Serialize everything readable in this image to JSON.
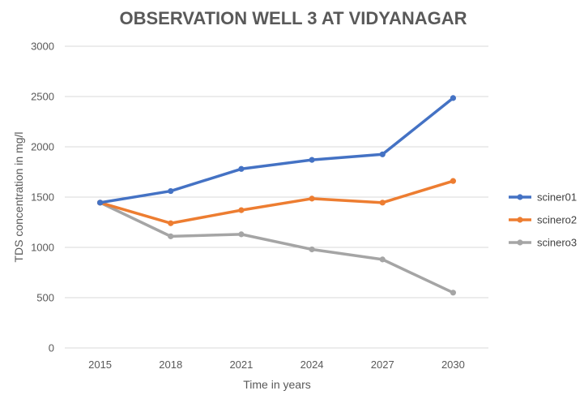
{
  "chart_data": {
    "type": "line",
    "title": "OBSERVATION WELL 3 AT VIDYANAGAR",
    "xlabel": "Time in years",
    "ylabel": "TDS concentration in mg/l",
    "categories": [
      "2015",
      "2018",
      "2021",
      "2024",
      "2027",
      "2030"
    ],
    "ylim": [
      0,
      3000
    ],
    "yticks": [
      0,
      500,
      1000,
      1500,
      2000,
      2500,
      3000
    ],
    "grid": true,
    "legend_position": "right",
    "series": [
      {
        "name": "sciner01",
        "color": "#4472C4",
        "values": [
          1445,
          1560,
          1780,
          1870,
          1925,
          2485
        ]
      },
      {
        "name": "scinero2",
        "color": "#ED7D31",
        "values": [
          1445,
          1240,
          1370,
          1485,
          1445,
          1660
        ]
      },
      {
        "name": "scinero3",
        "color": "#A5A5A5",
        "values": [
          1445,
          1110,
          1130,
          980,
          880,
          550
        ]
      }
    ]
  }
}
